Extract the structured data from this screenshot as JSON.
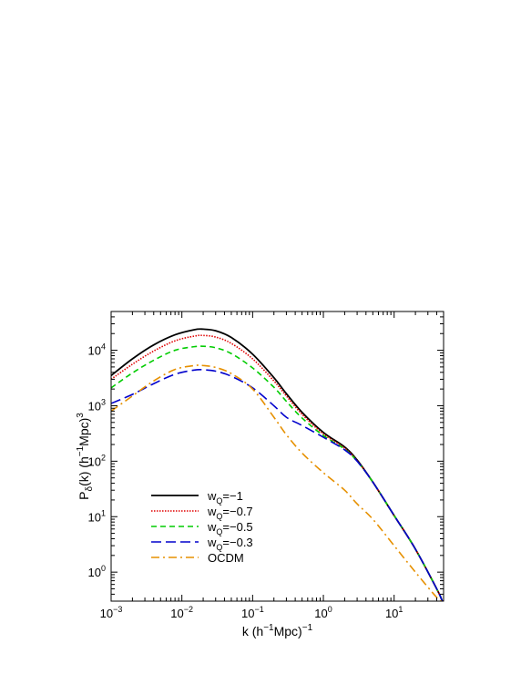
{
  "chart_data": {
    "type": "line",
    "xscale": "log",
    "yscale": "log",
    "xlim": [
      0.001,
      50
    ],
    "ylim": [
      0.3,
      50000
    ],
    "xlabel": {
      "base": "k (h",
      "sup1": "−1",
      "mid": "Mpc)",
      "sup2": "−1"
    },
    "ylabel": {
      "base": "P",
      "sub": "δ",
      "mid": "(k) (h",
      "sup1": "−1",
      "tail": "Mpc)",
      "sup2": "3"
    },
    "x_ticks": [
      {
        "value": 0.001,
        "base": "10",
        "exp": "−3"
      },
      {
        "value": 0.01,
        "base": "10",
        "exp": "−2"
      },
      {
        "value": 0.1,
        "base": "10",
        "exp": "−1"
      },
      {
        "value": 1,
        "base": "10",
        "exp": "0"
      },
      {
        "value": 10,
        "base": "10",
        "exp": "1"
      }
    ],
    "y_ticks": [
      {
        "value": 1,
        "base": "10",
        "exp": "0"
      },
      {
        "value": 10,
        "base": "10",
        "exp": "1"
      },
      {
        "value": 100,
        "base": "10",
        "exp": "2"
      },
      {
        "value": 1000,
        "base": "10",
        "exp": "3"
      },
      {
        "value": 10000,
        "base": "10",
        "exp": "4"
      }
    ],
    "legend_position": "lower-left",
    "series": [
      {
        "label": {
          "main": "w",
          "sub": "Q",
          "tail": "=−1"
        },
        "color": "#000000",
        "dash": "solid",
        "x": [
          0.001,
          0.002,
          0.004,
          0.008,
          0.015,
          0.02,
          0.03,
          0.05,
          0.1,
          0.2,
          0.3,
          0.5,
          1,
          2,
          3,
          5,
          10,
          20,
          40,
          48
        ],
        "y": [
          3500,
          7000,
          12500,
          19000,
          23500,
          24000,
          22500,
          17000,
          8500,
          3200,
          1650,
          760,
          330,
          180,
          105,
          42,
          10.5,
          2.6,
          0.5,
          0.3
        ]
      },
      {
        "label": {
          "main": "w",
          "sub": "Q",
          "tail": "=−0.7"
        },
        "color": "#e00000",
        "dash": "dotted",
        "x": [
          0.001,
          0.002,
          0.004,
          0.008,
          0.015,
          0.02,
          0.03,
          0.05,
          0.1,
          0.2,
          0.3,
          0.5,
          1,
          2,
          3,
          5,
          10,
          20,
          40,
          48
        ],
        "y": [
          3000,
          5600,
          9700,
          14800,
          18000,
          18500,
          17300,
          13300,
          7000,
          2800,
          1500,
          700,
          310,
          172,
          102,
          42,
          10.5,
          2.6,
          0.5,
          0.3
        ]
      },
      {
        "label": {
          "main": "w",
          "sub": "Q",
          "tail": "=−0.5"
        },
        "color": "#00cc00",
        "dash": "dashed",
        "x": [
          0.001,
          0.002,
          0.004,
          0.008,
          0.015,
          0.02,
          0.03,
          0.05,
          0.1,
          0.2,
          0.3,
          0.5,
          1,
          2,
          3,
          5,
          10,
          20,
          40,
          48
        ],
        "y": [
          2100,
          3900,
          6600,
          10000,
          11600,
          11800,
          11100,
          8700,
          4800,
          2150,
          1200,
          600,
          290,
          165,
          100,
          42,
          10.5,
          2.6,
          0.5,
          0.3
        ]
      },
      {
        "label": {
          "main": "w",
          "sub": "Q",
          "tail": "=−0.3"
        },
        "color": "#0000cc",
        "dash": "longdash",
        "x": [
          0.001,
          0.002,
          0.004,
          0.008,
          0.015,
          0.02,
          0.03,
          0.05,
          0.1,
          0.2,
          0.3,
          0.5,
          1,
          2,
          3,
          5,
          10,
          20,
          40,
          48
        ],
        "y": [
          1100,
          1600,
          2500,
          3700,
          4400,
          4450,
          4200,
          3400,
          2100,
          1000,
          620,
          440,
          270,
          160,
          100,
          42,
          10.5,
          2.6,
          0.5,
          0.3
        ]
      },
      {
        "label": {
          "main": "OCDM",
          "sub": "",
          "tail": ""
        },
        "color": "#e69000",
        "dash": "dashdot",
        "x": [
          0.001,
          0.002,
          0.004,
          0.008,
          0.015,
          0.02,
          0.03,
          0.05,
          0.1,
          0.2,
          0.3,
          0.5,
          1,
          2,
          3,
          5,
          10,
          20,
          40,
          48
        ],
        "y": [
          800,
          1500,
          2800,
          4500,
          5300,
          5300,
          4900,
          3800,
          2000,
          620,
          300,
          140,
          62,
          30,
          17,
          9,
          3,
          1,
          0.35,
          0.3
        ]
      }
    ]
  }
}
